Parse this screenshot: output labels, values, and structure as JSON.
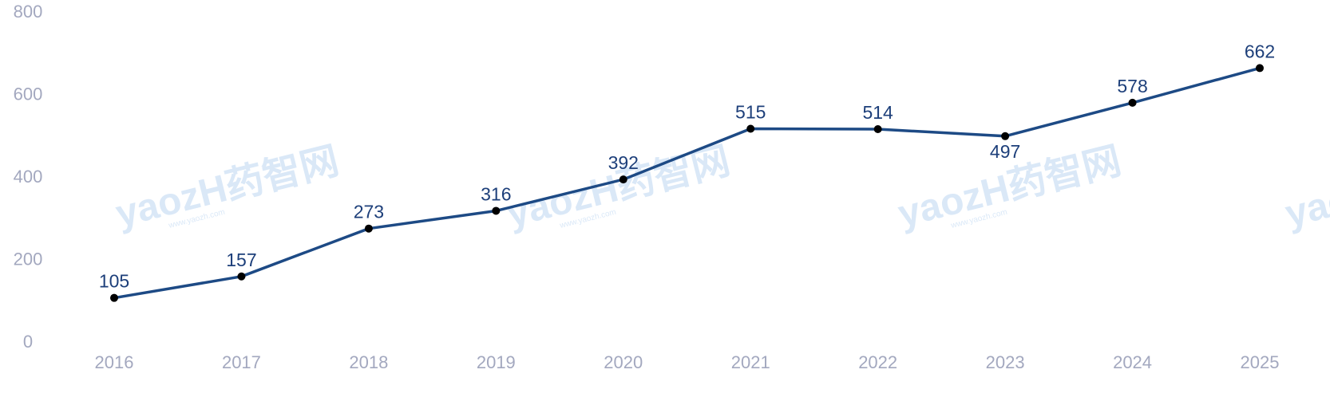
{
  "watermark": {
    "brand": "yaozH药智网",
    "url": "www.yaozh.com"
  },
  "colors": {
    "line": "#1d4a85",
    "point": "#000000",
    "tick_text": "#a3a8bf",
    "label_text": "#1d3f7a",
    "watermark": "#bcd6f2"
  },
  "chart_data": {
    "type": "line",
    "title": "",
    "xlabel": "",
    "ylabel": "",
    "categories": [
      "2016",
      "2017",
      "2018",
      "2019",
      "2020",
      "2021",
      "2022",
      "2023",
      "2024",
      "2025"
    ],
    "series": [
      {
        "values": [
          105,
          157,
          273,
          316,
          392,
          515,
          514,
          497,
          578,
          662
        ]
      }
    ],
    "ylim": [
      0,
      800
    ],
    "yticks": [
      "0",
      "200",
      "400",
      "600",
      "800"
    ],
    "grid": false,
    "legend": "none"
  }
}
